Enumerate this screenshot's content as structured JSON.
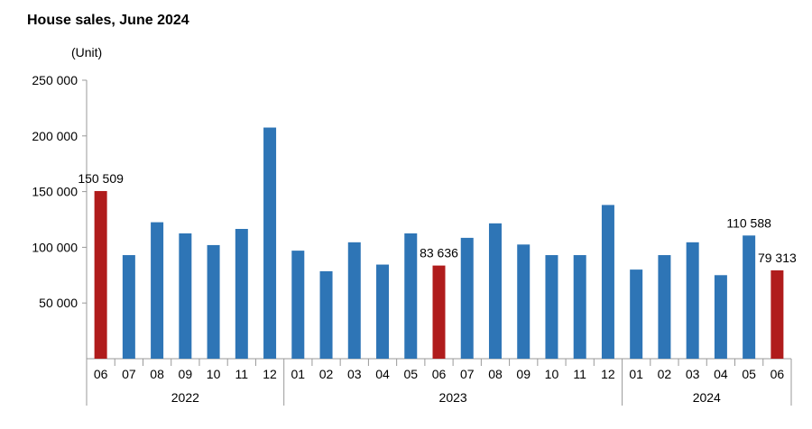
{
  "chart_data": {
    "type": "bar",
    "title": "House sales, June 2024",
    "unit": "(Unit)",
    "ylim": [
      0,
      250000
    ],
    "yticks": [
      50000,
      100000,
      150000,
      200000,
      250000
    ],
    "ytick_labels": [
      "50 000",
      "100 000",
      "150 000",
      "200 000",
      "250 000"
    ],
    "grid": false,
    "colors": {
      "default": "#2e75b6",
      "highlight": "#b01c1c",
      "axis": "#999999"
    },
    "groups": [
      {
        "label": "2022",
        "start": 0,
        "count": 7
      },
      {
        "label": "2023",
        "start": 7,
        "count": 12
      },
      {
        "label": "2024",
        "start": 19,
        "count": 6
      }
    ],
    "categories": [
      "06",
      "07",
      "08",
      "09",
      "10",
      "11",
      "12",
      "01",
      "02",
      "03",
      "04",
      "05",
      "06",
      "07",
      "08",
      "09",
      "10",
      "11",
      "12",
      "01",
      "02",
      "03",
      "04",
      "05",
      "06"
    ],
    "values": [
      150509,
      93000,
      122500,
      112500,
      102000,
      116500,
      207500,
      97000,
      78500,
      104500,
      84500,
      112500,
      83636,
      108500,
      121500,
      102500,
      93000,
      93000,
      138000,
      80000,
      93000,
      104500,
      75000,
      110588,
      79313
    ],
    "highlight": [
      true,
      false,
      false,
      false,
      false,
      false,
      false,
      false,
      false,
      false,
      false,
      false,
      true,
      false,
      false,
      false,
      false,
      false,
      false,
      false,
      false,
      false,
      false,
      false,
      true
    ],
    "data_labels": [
      {
        "index": 0,
        "text": "150 509"
      },
      {
        "index": 12,
        "text": "83 636"
      },
      {
        "index": 23,
        "text": "110 588"
      },
      {
        "index": 24,
        "text": "79 313"
      }
    ]
  }
}
